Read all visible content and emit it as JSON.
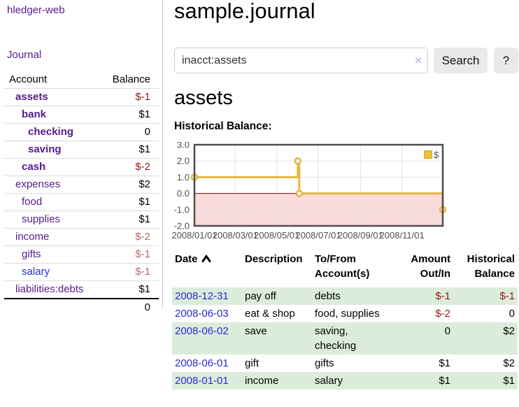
{
  "app": {
    "title": "hledger-web"
  },
  "colors": {
    "accent_purple": "#551a8b",
    "link_blue": "#2a2ad8",
    "negative_strong": "#8f1a1a",
    "negative_soft": "#b26b6b",
    "row_highlight_green": "#dcecdb",
    "chart_line_gold": "#e2b844",
    "chart_negative_region_pink": "#fadbdb",
    "chart_zero_line_red": "#8b0000"
  },
  "sidebar": {
    "journal_link": "Journal",
    "accounts_table": {
      "account_header": "Account",
      "balance_header": "Balance",
      "rows": [
        {
          "name": "assets",
          "indent": 1,
          "bold": true,
          "balance": "$-1",
          "balance_style": "neg-strong"
        },
        {
          "name": "bank",
          "indent": 2,
          "bold": true,
          "balance": "$1",
          "balance_style": "pos"
        },
        {
          "name": "checking",
          "indent": 3,
          "bold": true,
          "balance": "0",
          "balance_style": "pos"
        },
        {
          "name": "saving",
          "indent": 3,
          "bold": true,
          "balance": "$1",
          "balance_style": "pos"
        },
        {
          "name": "cash",
          "indent": 2,
          "bold": true,
          "balance": "$-2",
          "balance_style": "neg-strong"
        },
        {
          "name": "expenses",
          "indent": 1,
          "bold": false,
          "balance": "$2",
          "balance_style": "pos"
        },
        {
          "name": "food",
          "indent": 2,
          "bold": false,
          "balance": "$1",
          "balance_style": "pos"
        },
        {
          "name": "supplies",
          "indent": 2,
          "bold": false,
          "balance": "$1",
          "balance_style": "pos"
        },
        {
          "name": "income",
          "indent": 1,
          "bold": false,
          "balance": "$-2",
          "balance_style": "neg-soft"
        },
        {
          "name": "gifts",
          "indent": 2,
          "bold": false,
          "balance": "$-1",
          "balance_style": "neg-soft"
        },
        {
          "name": "salary",
          "indent": 2,
          "bold": false,
          "link_color": "blue",
          "balance": "$-1",
          "balance_style": "neg-soft"
        },
        {
          "name": "liabilities:debts",
          "indent": 1,
          "bold": false,
          "balance": "$1",
          "balance_style": "pos"
        }
      ],
      "total": "0"
    }
  },
  "main": {
    "title": "sample.journal",
    "search": {
      "value": "inacct:assets",
      "clear_icon": "×",
      "search_button": "Search",
      "help_button": "?"
    },
    "account_heading": "assets",
    "chart_heading": "Historical Balance:",
    "register_table": {
      "headers": {
        "date": "Date",
        "description": "Description",
        "tofrom": "To/From Account(s)",
        "amount": "Amount Out/In",
        "balance": "Historical Balance"
      },
      "sort": {
        "column": "date",
        "direction": "ascending"
      },
      "rows": [
        {
          "date": "2008-12-31",
          "description": "pay off",
          "accounts": "debts",
          "amount": "$-1",
          "amount_neg": true,
          "balance": "$-1",
          "balance_neg": true,
          "highlight": true
        },
        {
          "date": "2008-06-03",
          "description": "eat & shop",
          "accounts": "food, supplies",
          "amount": "$-2",
          "amount_neg": true,
          "balance": "0",
          "balance_neg": false,
          "highlight": false
        },
        {
          "date": "2008-06-02",
          "description": "save",
          "accounts": "saving, checking",
          "amount": "0",
          "amount_neg": false,
          "balance": "$2",
          "balance_neg": false,
          "highlight": true
        },
        {
          "date": "2008-06-01",
          "description": "gift",
          "accounts": "gifts",
          "amount": "$1",
          "amount_neg": false,
          "balance": "$2",
          "balance_neg": false,
          "highlight": false
        },
        {
          "date": "2008-01-01",
          "description": "income",
          "accounts": "salary",
          "amount": "$1",
          "amount_neg": false,
          "balance": "$1",
          "balance_neg": false,
          "highlight": true
        }
      ]
    }
  },
  "chart_data": {
    "type": "line",
    "title": "Historical Balance:",
    "step": true,
    "x_range": [
      "2008-01-01",
      "2008-12-31"
    ],
    "ylim": [
      -2,
      3
    ],
    "y_ticks": [
      "3.0",
      "2.0",
      "1.0",
      "0.0",
      "-1.0",
      "-2.0"
    ],
    "x_ticks": [
      {
        "date": "2008-01-01",
        "label": "2008/01/01"
      },
      {
        "date": "2008-03-01",
        "label": "2008/03/01"
      },
      {
        "date": "2008-05-01",
        "label": "2008/05/01"
      },
      {
        "date": "2008-07-01",
        "label": "2008/07/01"
      },
      {
        "date": "2008-09-01",
        "label": "2008/09/01"
      },
      {
        "date": "2008-11-01",
        "label": "2008/11/01"
      }
    ],
    "series": [
      {
        "name": "$",
        "color": "#e2b844",
        "points": [
          {
            "date": "2008-01-01",
            "value": 1
          },
          {
            "date": "2008-06-01",
            "value": 2
          },
          {
            "date": "2008-06-03",
            "value": 0
          },
          {
            "date": "2008-12-31",
            "value": -1
          }
        ]
      }
    ],
    "legend_position": "top-right",
    "grid": true,
    "negative_region_color": "#fadbdb",
    "zero_line_color": "#8b0000"
  }
}
